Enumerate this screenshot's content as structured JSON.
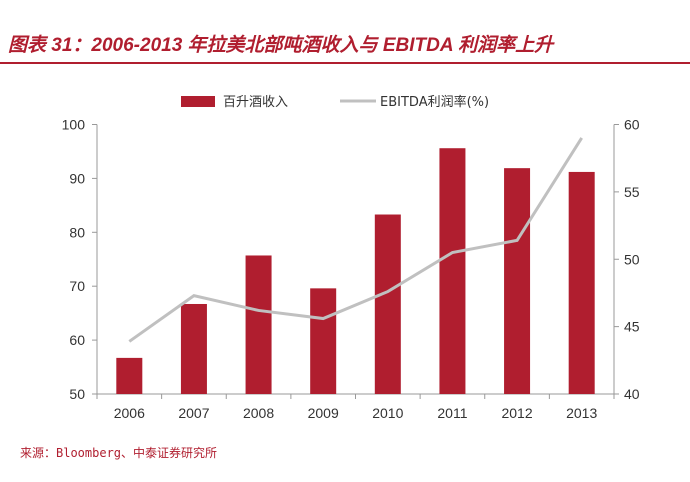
{
  "title": "图表 31：2006-2013 年拉美北部吨酒收入与 EBITDA 利润率上升",
  "source": "来源：Bloomberg、中泰证券研究所",
  "chart_data": {
    "type": "bar+line",
    "categories": [
      "2006",
      "2007",
      "2008",
      "2009",
      "2010",
      "2011",
      "2012",
      "2013"
    ],
    "series": [
      {
        "name": "百升酒收入",
        "type": "bar",
        "axis": "left",
        "color": "#b01e2f",
        "values": [
          56.7,
          66.7,
          75.7,
          69.6,
          83.3,
          95.6,
          91.9,
          91.2
        ]
      },
      {
        "name": "EBITDA利润率(%)",
        "type": "line",
        "axis": "right",
        "color": "#c0c0c0",
        "values": [
          43.9,
          47.3,
          46.2,
          45.6,
          47.6,
          50.5,
          51.4,
          59.0
        ]
      }
    ],
    "left_axis": {
      "ylim": [
        50,
        100
      ],
      "ticks": [
        "50",
        "60",
        "70",
        "80",
        "90",
        "100"
      ]
    },
    "right_axis": {
      "ylim": [
        40,
        60
      ],
      "ticks": [
        "40",
        "45",
        "50",
        "55",
        "60"
      ]
    },
    "legend": "top",
    "grid": false
  }
}
